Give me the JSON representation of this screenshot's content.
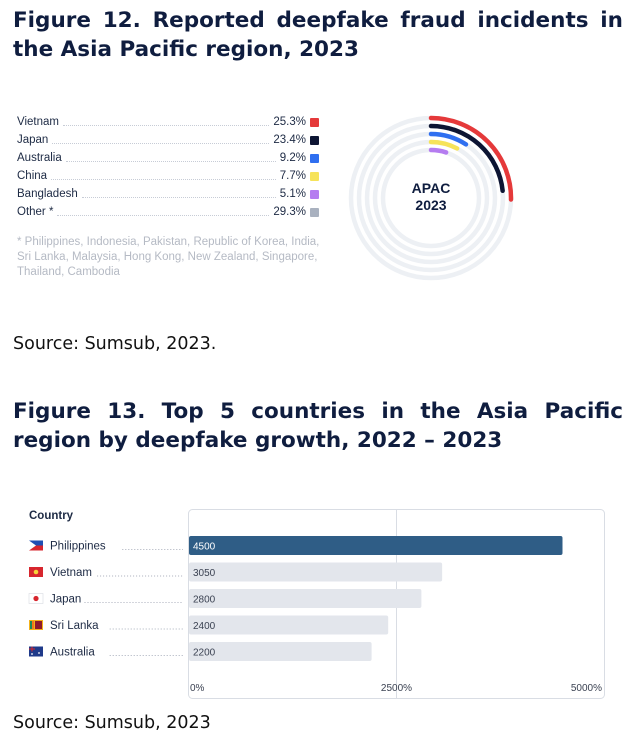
{
  "figure12": {
    "title": "Figure 12. Reported deepfake fraud incidents in the Asia Pacific region, 2023",
    "footnote": "* Philippines, Indonesia, Pakistan, Republic of Korea, India, Sri Lanka, Malaysia, Hong Kong, New Zealand, Singapore, Thailand, Cambodia",
    "source": "Source: Sumsub, 2023."
  },
  "figure13": {
    "title": "Figure 13. Top 5 countries in the Asia Pacific region by deepfake growth, 2022 – 2023",
    "source": "Source: Sumsub, 2023"
  },
  "chart_data": [
    {
      "type": "pie",
      "variant": "concentric-rings",
      "center_label": [
        "APAC",
        "2023"
      ],
      "categories": [
        "Vietnam",
        "Japan",
        "Australia",
        "China",
        "Bangladesh",
        "Other *"
      ],
      "values": [
        25.3,
        23.4,
        9.2,
        7.7,
        5.1,
        29.3
      ],
      "value_labels": [
        "25.3%",
        "23.4%",
        "9.2%",
        "7.7%",
        "5.1%",
        "29.3%"
      ],
      "colors": [
        "#e5393a",
        "#0d1533",
        "#2f6ff0",
        "#f6e35a",
        "#b57cf0",
        "#a9b1bf"
      ],
      "unit": "%"
    },
    {
      "type": "bar",
      "orientation": "horizontal",
      "category_header": "Country",
      "categories": [
        "Philippines",
        "Vietnam",
        "Japan",
        "Sri Lanka",
        "Australia"
      ],
      "flags": [
        "philippines-flag-icon",
        "vietnam-flag-icon",
        "japan-flag-icon",
        "sri-lanka-flag-icon",
        "australia-flag-icon"
      ],
      "values": [
        4500,
        3050,
        2800,
        2400,
        2200
      ],
      "value_labels": [
        "4500",
        "3050",
        "2800",
        "2400",
        "2200"
      ],
      "xlim": [
        0,
        5000
      ],
      "ticks": [
        0,
        2500,
        5000
      ],
      "tick_labels": [
        "0%",
        "2500%",
        "5000%"
      ],
      "colors": {
        "highlight": "#2f5d86",
        "default": "#e3e6ec"
      }
    }
  ]
}
